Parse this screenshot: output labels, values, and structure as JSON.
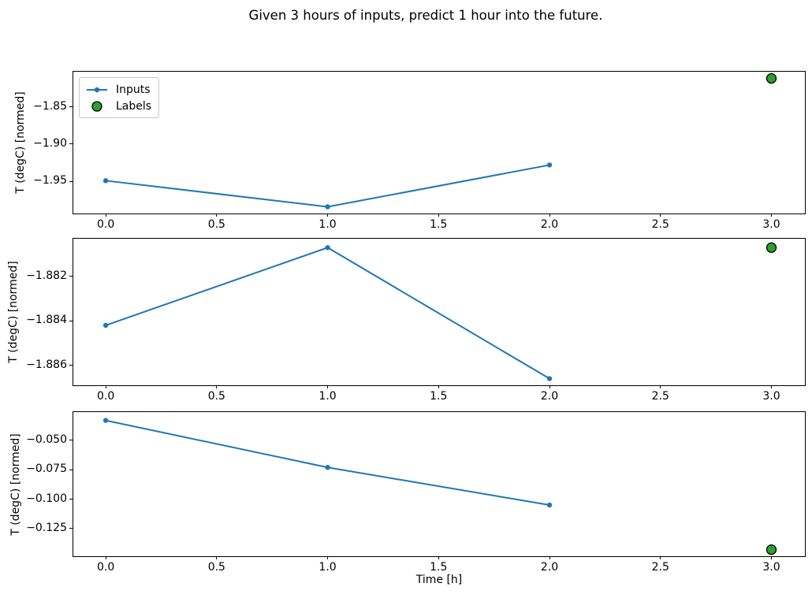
{
  "title": "Given 3 hours of inputs, predict 1 hour into the future.",
  "xlabel": "Time [h]",
  "colors": {
    "inputs_line": "#1f77b4",
    "labels_fill": "#2ca02c",
    "labels_edge": "#000000",
    "axis": "#000000",
    "background": "#ffffff",
    "legend_border": "#c9c9c9"
  },
  "legend": {
    "items": [
      {
        "label": "Inputs",
        "swatch": "line-with-dot-marker"
      },
      {
        "label": "Labels",
        "swatch": "green-circle-marker"
      }
    ]
  },
  "chart_data": [
    {
      "type": "line",
      "ylabel": "T (degC) [normed]",
      "xlabel": "",
      "series": [
        {
          "name": "Inputs",
          "x": [
            0,
            1,
            2
          ],
          "values": [
            -1.949,
            -1.984,
            -1.928
          ]
        }
      ],
      "labels_point": {
        "name": "Labels",
        "x": 3,
        "y": -1.812
      },
      "xticks": [
        {
          "label": "0.0",
          "value": 0.0
        },
        {
          "label": "0.5",
          "value": 0.5
        },
        {
          "label": "1.0",
          "value": 1.0
        },
        {
          "label": "1.5",
          "value": 1.5
        },
        {
          "label": "2.0",
          "value": 2.0
        },
        {
          "label": "2.5",
          "value": 2.5
        },
        {
          "label": "3.0",
          "value": 3.0
        }
      ],
      "yticks": [
        {
          "label": "−1.85",
          "value": -1.85
        },
        {
          "label": "−1.90",
          "value": -1.9
        },
        {
          "label": "−1.95",
          "value": -1.95
        }
      ],
      "xlim": [
        -0.146,
        3.151
      ],
      "ylim": [
        -1.993,
        -1.803
      ],
      "grid": false,
      "legend_visible": true
    },
    {
      "type": "line",
      "ylabel": "T (degC) [normed]",
      "xlabel": "",
      "series": [
        {
          "name": "Inputs",
          "x": [
            0,
            1,
            2
          ],
          "values": [
            -1.8842,
            -1.8807,
            -1.8866
          ]
        }
      ],
      "labels_point": {
        "name": "Labels",
        "x": 3,
        "y": -1.8807
      },
      "xticks": [
        {
          "label": "0.0",
          "value": 0.0
        },
        {
          "label": "0.5",
          "value": 0.5
        },
        {
          "label": "1.0",
          "value": 1.0
        },
        {
          "label": "1.5",
          "value": 1.5
        },
        {
          "label": "2.0",
          "value": 2.0
        },
        {
          "label": "2.5",
          "value": 2.5
        },
        {
          "label": "3.0",
          "value": 3.0
        }
      ],
      "yticks": [
        {
          "label": "−1.882",
          "value": -1.882
        },
        {
          "label": "−1.884",
          "value": -1.884
        },
        {
          "label": "−1.886",
          "value": -1.886
        }
      ],
      "xlim": [
        -0.146,
        3.151
      ],
      "ylim": [
        -1.8869,
        -1.8803
      ],
      "grid": false,
      "legend_visible": false
    },
    {
      "type": "line",
      "ylabel": "T (degC) [normed]",
      "xlabel": "Time [h]",
      "series": [
        {
          "name": "Inputs",
          "x": [
            0,
            1,
            2
          ],
          "values": [
            -0.033,
            -0.073,
            -0.105
          ]
        }
      ],
      "labels_point": {
        "name": "Labels",
        "x": 3,
        "y": -0.143
      },
      "xticks": [
        {
          "label": "0.0",
          "value": 0.0
        },
        {
          "label": "0.5",
          "value": 0.5
        },
        {
          "label": "1.0",
          "value": 1.0
        },
        {
          "label": "1.5",
          "value": 1.5
        },
        {
          "label": "2.0",
          "value": 2.0
        },
        {
          "label": "2.5",
          "value": 2.5
        },
        {
          "label": "3.0",
          "value": 3.0
        }
      ],
      "yticks": [
        {
          "label": "−0.050",
          "value": -0.05
        },
        {
          "label": "−0.075",
          "value": -0.075
        },
        {
          "label": "−0.100",
          "value": -0.1
        },
        {
          "label": "−0.125",
          "value": -0.125
        }
      ],
      "xlim": [
        -0.146,
        3.151
      ],
      "ylim": [
        -0.1486,
        -0.0259
      ],
      "grid": false,
      "legend_visible": false
    }
  ]
}
